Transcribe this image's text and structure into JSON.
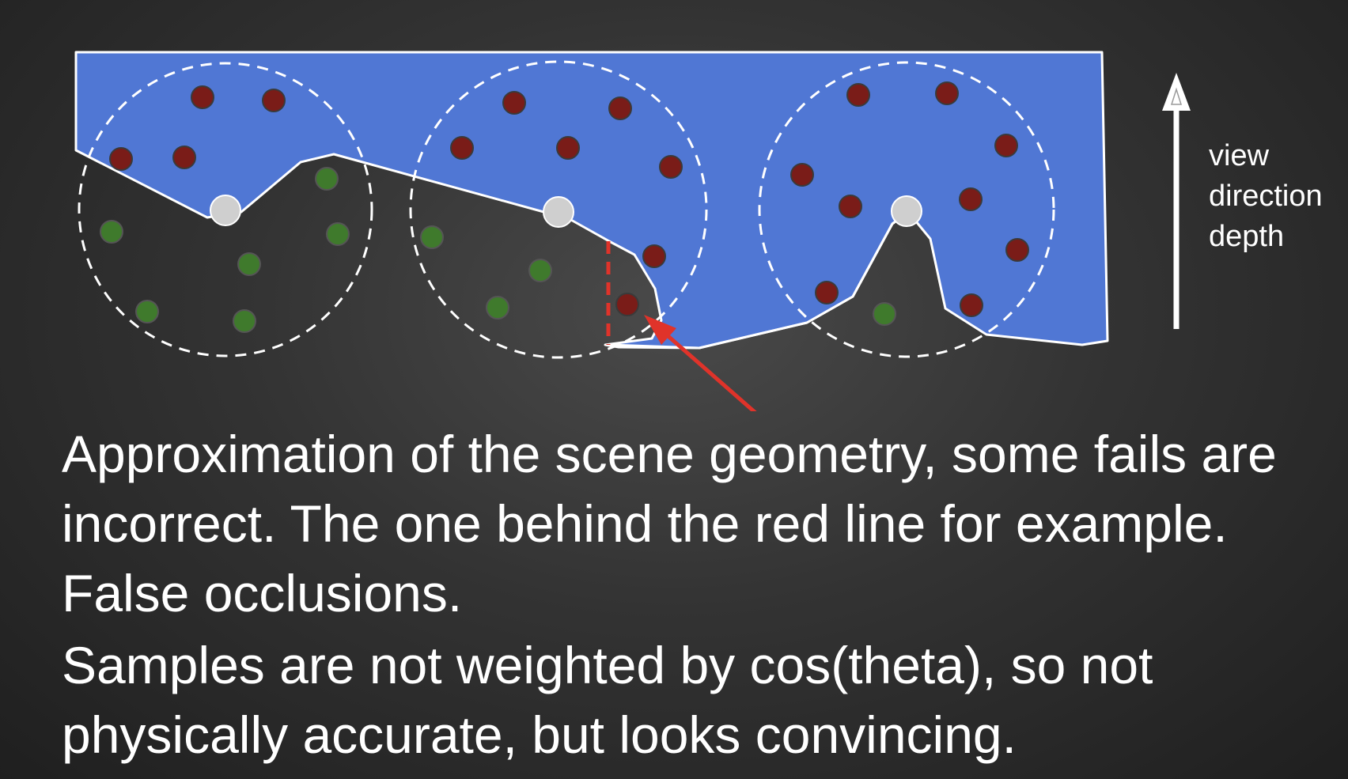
{
  "labels": {
    "view": "view",
    "direction": "direction",
    "depth": "depth"
  },
  "caption": {
    "line1": "Approximation of the scene geometry, some fails are incorrect. The one behind the red line for example. False occlusions.",
    "line2": "Samples are not weighted by cos(theta), so not physically accurate, but looks convincing."
  },
  "colors": {
    "geometry_fill": "#5077d4",
    "occluded_sample": "#7a1c18",
    "visible_sample": "#3f7a2c",
    "center_point": "#cfcfcf",
    "false_occlusion_marker": "#e0332a",
    "outline": "#ffffff"
  }
}
